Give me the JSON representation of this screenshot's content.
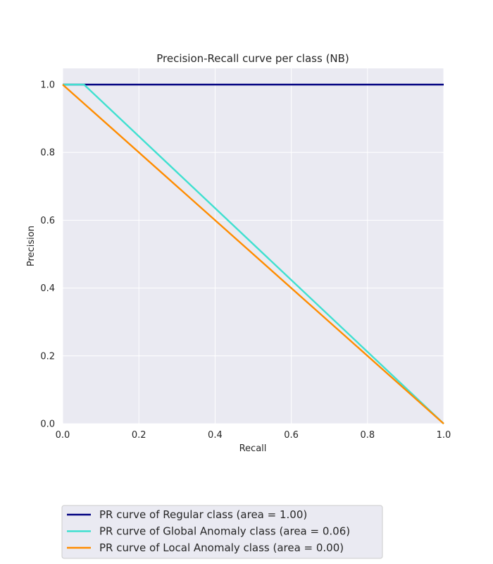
{
  "chart_data": {
    "type": "line",
    "title": "Precision-Recall curve per class (NB)",
    "xlabel": "Recall",
    "ylabel": "Precision",
    "xlim": [
      0.0,
      1.0
    ],
    "ylim": [
      0.0,
      1.05
    ],
    "x_ticks": [
      "0.0",
      "0.2",
      "0.4",
      "0.6",
      "0.8",
      "1.0"
    ],
    "y_ticks": [
      "0.0",
      "0.2",
      "0.4",
      "0.6",
      "0.8",
      "1.0"
    ],
    "grid": true,
    "legend_position": "below plot, left",
    "series": [
      {
        "name": "PR curve of Regular class (area = 1.00)",
        "color": "#000080",
        "x": [
          0.0,
          1.0
        ],
        "y": [
          1.0,
          1.0
        ]
      },
      {
        "name": "PR curve of Global Anomaly class (area = 0.06)",
        "color": "#40e0d0",
        "x": [
          0.0,
          0.056,
          1.0
        ],
        "y": [
          1.0,
          1.0,
          0.0
        ]
      },
      {
        "name": "PR curve of Local Anomaly class (area = 0.00)",
        "color": "#ff8c00",
        "x": [
          0.0,
          1.0
        ],
        "y": [
          1.0,
          0.0
        ]
      }
    ]
  }
}
